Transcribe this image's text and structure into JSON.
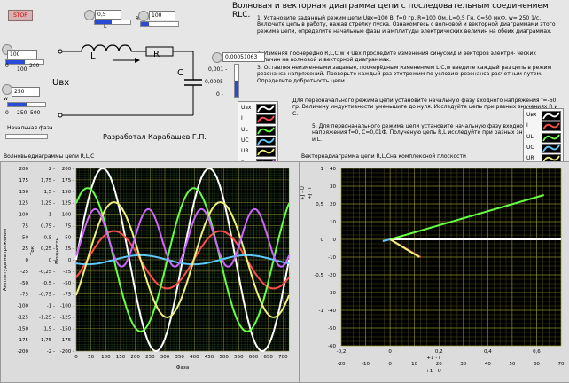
{
  "controls": {
    "stop_label": "STOP",
    "L_knob_value": "0,5",
    "L_label": "L",
    "R_knob_value": "100",
    "R_label": "R",
    "C_value": "0,00051063",
    "C_ticks": [
      "0,001 -",
      "0,0005 -",
      "0 -"
    ],
    "U_value": "100",
    "U_ticks": [
      "0",
      "200",
      "100"
    ],
    "w_value": "250",
    "w_label": "w",
    "w_ticks": [
      "0",
      "250",
      "500"
    ],
    "phase_label": "Начальная фаза"
  },
  "circuit": {
    "I_label": "I",
    "Uvx_label": "Uвх",
    "L_label": "L",
    "R_label": "R",
    "C_label": "C"
  },
  "author": "Разработал Карабашев Г.П.",
  "title": "Волновая и векторная диаграмма цепи с последовательным соединением  RLC.",
  "instructions": {
    "i1": "1. Установите заданный режим цепи  Uвх=100 В, f=0 гр.,R=100 Ом, L=0,5 Гн, С=50 мкФ, w= 250 1/с. Включите цепь в работу, нажав стрелку пуска. Ознакомтесь с волновой и векторной диаграммами  этого режима цепи, определите начальные фазы и амплитуды электрических величин на обеих диаграммах.",
    "i2": "2. Изменяя поочерёдно  R,L,C,w и Uвх проследите изменения синусоид и векторов электри- ческих величин на волновой и векторной диаграммах.",
    "i3": "3. Оставляя неизменными заданые, поочерёдным изменением L,C,w введите каждый раз цепь в режим резонанса напряжений. Проверьте каждый раз этотрежим по условию резонанса расчетным путем. Определите добротность цепи.",
    "i4": "Для первоначального режима цепи установите начальную фазу входного напряжения  f=-60 гр. Величину индуктивности уменьшите до нуля. Исследуйте цепь при разных значениях R и C.",
    "i5": "5. Для первоначального режима цепи установите начальную фазу входного напряжения f=0, C=0,01Ф. Полученую цепь R,L исследуйте при разных значениях R и L."
  },
  "legend_left": {
    "items": [
      {
        "name": "Uвх",
        "color": "#ffffff"
      },
      {
        "name": "I",
        "color": "#ff4d4d"
      },
      {
        "name": "UL",
        "color": "#66ff44"
      },
      {
        "name": "UC",
        "color": "#5ecbff"
      },
      {
        "name": "UR",
        "color": "#f0f080"
      },
      {
        "name": "p",
        "color": "#cc66ff"
      }
    ]
  },
  "legend_right": {
    "items": [
      {
        "name": "Uвх",
        "color": "#ffffff"
      },
      {
        "name": "I",
        "color": "#ff4d4d"
      },
      {
        "name": "UL",
        "color": "#66ff44"
      },
      {
        "name": "UC",
        "color": "#5ecbff"
      },
      {
        "name": "UR",
        "color": "#f0f080"
      }
    ]
  },
  "wave_graph": {
    "title": "Волновыедиаграммы цепи R,L,C",
    "ylabel_outer": "Амплитуда напряжения",
    "ylabel_tok": "Ток",
    "ylabel_power": "Мощность",
    "xlabel": "Фаза"
  },
  "vector_graph": {
    "title": "Векторнадиаграмма цепи R,L,Cна комплексной  плоскости",
    "y_axis_label_1": "+J - U",
    "y_axis_label_2": "+J - I",
    "x_axis_label_1": "+1 - I",
    "x_axis_label_2": "+1 - U"
  },
  "chart_data": [
    {
      "type": "line",
      "title": "Волновыедиаграммы цепи R,L,C",
      "xlabel": "Фаза",
      "ylabel": "Амплитуда напряжения",
      "xlim": [
        0,
        720
      ],
      "x_ticks": [
        "0",
        "50",
        "100",
        "150",
        "200",
        "250",
        "300",
        "350",
        "400",
        "450",
        "500",
        "550",
        "600",
        "650",
        "700"
      ],
      "ylim": [
        -200,
        200
      ],
      "y_ticks_voltage": [
        "200",
        "175",
        "150",
        "125",
        "100",
        "75",
        "50",
        "25",
        "0",
        "-25",
        "-50",
        "-75",
        "-100",
        "-125",
        "-150",
        "-175",
        "-200"
      ],
      "y_ticks_current": [
        "2",
        "1,75",
        "1,5",
        "1,25",
        "1",
        "0,75",
        "0,5",
        "0,25",
        "0",
        "-0,25",
        "-0,5",
        "-0,75",
        "-1",
        "-1,25",
        "-1,5",
        "-1,75",
        "-2"
      ],
      "y_ticks_power": [
        "200",
        "175",
        "150",
        "125",
        "100",
        "75",
        "50",
        "25",
        "0",
        "-25",
        "-50",
        "-75",
        "-100",
        "-125",
        "-150",
        "-175",
        "-200"
      ],
      "grid": true,
      "series": [
        {
          "name": "Uвх",
          "color": "#ffffff",
          "amplitude": 200,
          "phase_deg": 0
        },
        {
          "name": "I",
          "color": "#ff4d4d",
          "amplitude": 63,
          "phase_deg": -38
        },
        {
          "name": "UL",
          "color": "#66ff44",
          "amplitude": 157,
          "phase_deg": 52
        },
        {
          "name": "UC",
          "color": "#5ecbff",
          "amplitude": 10,
          "phase_deg": -128
        },
        {
          "name": "UR",
          "color": "#f0f080",
          "amplitude": 126,
          "phase_deg": -38
        },
        {
          "name": "p",
          "color": "#cc66ff",
          "amplitude": 63,
          "offset": 48,
          "phase_deg": -38,
          "freq_multiplier": 2
        }
      ]
    },
    {
      "type": "scatter",
      "title": "Векторнадиаграмма цепи R,L,Cна комплексной  плоскости",
      "xlabel": "+1 - U",
      "ylabel": "+J - U",
      "xlim": [
        -20,
        70
      ],
      "ylim": [
        -60,
        40
      ],
      "x_ticks_U": [
        "-20",
        "-10",
        "0",
        "10",
        "20",
        "30",
        "40",
        "50",
        "60",
        "70"
      ],
      "x_ticks_I": [
        "-0,4",
        "-0,2",
        "0",
        "0,2",
        "0,4",
        "0,6"
      ],
      "y_ticks_U": [
        "40",
        "30",
        "20",
        "10",
        "0",
        "-10",
        "-20",
        "-30",
        "-40",
        "-50",
        "-60"
      ],
      "y_ticks_I": [
        "1",
        "0,5",
        "0",
        "-0,5",
        "-1"
      ],
      "grid": true,
      "vectors": [
        {
          "name": "Uвх",
          "color": "#ffffff",
          "from": [
            0,
            0
          ],
          "to": [
            88,
            0
          ]
        },
        {
          "name": "I",
          "color": "#ff4d4d",
          "from": [
            0,
            0
          ],
          "to": [
            0.25,
            -0.2
          ]
        },
        {
          "name": "UL",
          "color": "#66ff44",
          "from": [
            0,
            0
          ],
          "to": [
            63,
            25
          ]
        },
        {
          "name": "UC",
          "color": "#5ecbff",
          "from": [
            0,
            0
          ],
          "to": [
            -3,
            -1
          ]
        },
        {
          "name": "UR",
          "color": "#f0f080",
          "from": [
            0,
            0
          ],
          "to": [
            12,
            -10
          ]
        }
      ]
    }
  ]
}
